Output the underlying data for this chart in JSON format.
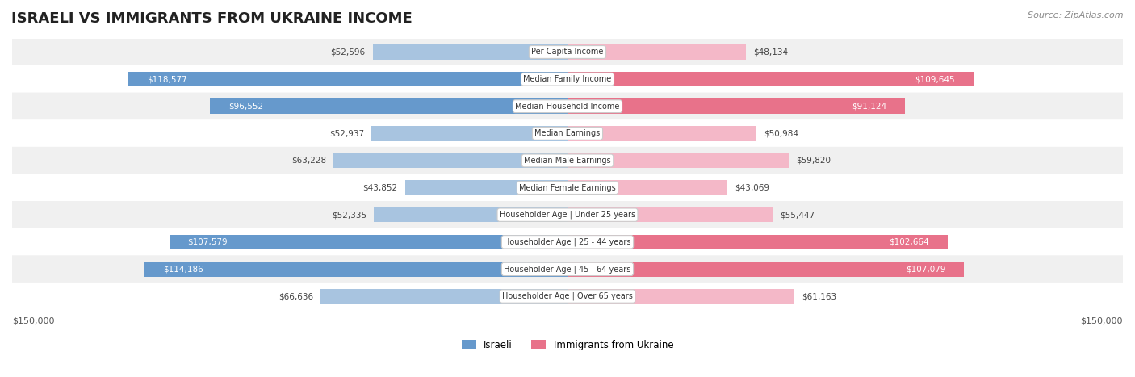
{
  "title": "ISRAELI VS IMMIGRANTS FROM UKRAINE INCOME",
  "source": "Source: ZipAtlas.com",
  "categories": [
    "Per Capita Income",
    "Median Family Income",
    "Median Household Income",
    "Median Earnings",
    "Median Male Earnings",
    "Median Female Earnings",
    "Householder Age | Under 25 years",
    "Householder Age | 25 - 44 years",
    "Householder Age | 45 - 64 years",
    "Householder Age | Over 65 years"
  ],
  "israeli_values": [
    52596,
    118577,
    96552,
    52937,
    63228,
    43852,
    52335,
    107579,
    114186,
    66636
  ],
  "ukraine_values": [
    48134,
    109645,
    91124,
    50984,
    59820,
    43069,
    55447,
    102664,
    107079,
    61163
  ],
  "max_value": 150000,
  "israeli_color_light": "#a8c4e0",
  "israeli_color_dark": "#6699cc",
  "ukraine_color_light": "#f4b8c8",
  "ukraine_color_dark": "#e8728a",
  "label_color_dark": "#ffffff",
  "label_color_light": "#555555",
  "threshold": 80000,
  "row_bg_color": "#f0f0f0",
  "row_bg_alt": "#ffffff",
  "legend_israeli": "Israeli",
  "legend_ukraine": "Immigrants from Ukraine",
  "xlabel_left": "$150,000",
  "xlabel_right": "$150,000"
}
